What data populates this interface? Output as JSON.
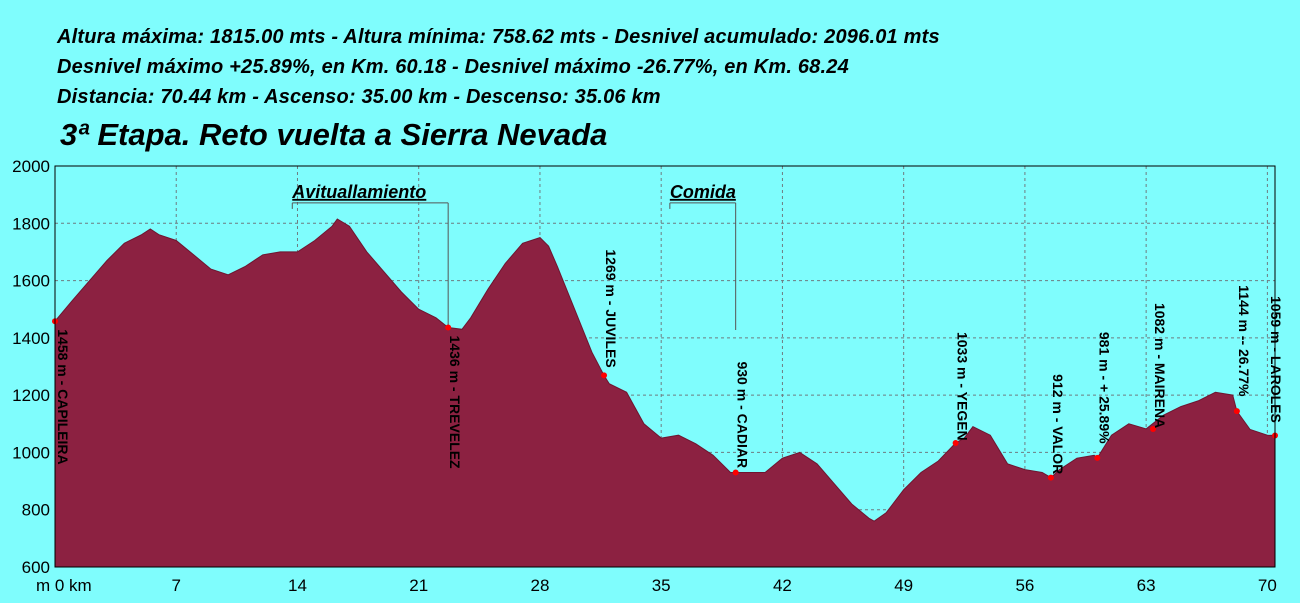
{
  "stats": {
    "line1": "Altura máxima: 1815.00 mts - Altura mínima: 758.62 mts - Desnivel acumulado: 2096.01 mts",
    "line2": "Desnivel máximo +25.89%, en Km. 60.18 - Desnivel máximo -26.77%, en Km. 68.24",
    "line3": "Distancia: 70.44 km - Ascenso: 35.00 km - Descenso: 35.06 km"
  },
  "colors": {
    "background": "#7ffdfd",
    "fill": "#8c2141",
    "grid": "#6f7b80",
    "point": "#ff0000"
  },
  "chart_data": {
    "type": "area",
    "title": "3ª Etapa. Reto vuelta a Sierra Nevada",
    "ylabel": "m",
    "xlabel": "km",
    "xlim": [
      0,
      70.44
    ],
    "ylim": [
      600,
      2000
    ],
    "xticks": [
      0,
      7,
      14,
      21,
      28,
      35,
      42,
      49,
      56,
      63,
      70
    ],
    "xtick_labels": [
      "m 0 km",
      "7",
      "14",
      "21",
      "28",
      "35",
      "42",
      "49",
      "56",
      "63",
      "70"
    ],
    "yticks": [
      600,
      800,
      1000,
      1200,
      1400,
      1600,
      1800,
      2000
    ],
    "grid": true,
    "series": [
      {
        "x": [
          0,
          1,
          2,
          3,
          4,
          5,
          5.5,
          6,
          7,
          8,
          9,
          10,
          11,
          12,
          13,
          14,
          15,
          16,
          16.3,
          17,
          18,
          19,
          20,
          21,
          22,
          22.7,
          23.5,
          24,
          25,
          26,
          27,
          28,
          28.5,
          29,
          30,
          31,
          31.7,
          32,
          33,
          34,
          35,
          36,
          37,
          38,
          39,
          40,
          41,
          42,
          43,
          44,
          45,
          46,
          47,
          47.3,
          48,
          49,
          50,
          51,
          52,
          52.5,
          53,
          54,
          55,
          56,
          57,
          57.5,
          58,
          59,
          60,
          60.18,
          61,
          62,
          63,
          64,
          65,
          66,
          67,
          68,
          68.24,
          69,
          70,
          70.44
        ],
        "y": [
          1458,
          1530,
          1600,
          1670,
          1730,
          1760,
          1780,
          1760,
          1740,
          1690,
          1640,
          1620,
          1650,
          1690,
          1700,
          1700,
          1740,
          1790,
          1815,
          1790,
          1700,
          1630,
          1560,
          1500,
          1470,
          1436,
          1430,
          1470,
          1570,
          1660,
          1730,
          1750,
          1720,
          1650,
          1500,
          1350,
          1269,
          1240,
          1210,
          1100,
          1050,
          1060,
          1030,
          990,
          930,
          930,
          930,
          980,
          1000,
          960,
          890,
          820,
          770,
          760,
          790,
          870,
          930,
          970,
          1033,
          1050,
          1090,
          1060,
          960,
          940,
          930,
          912,
          940,
          980,
          990,
          981,
          1060,
          1100,
          1082,
          1130,
          1160,
          1180,
          1210,
          1200,
          1144,
          1080,
          1060,
          1059
        ]
      }
    ],
    "points": [
      {
        "x": 0,
        "y": 1458,
        "label": "1458 m - CAPILEIRA"
      },
      {
        "x": 22.7,
        "y": 1436,
        "label": "1436 m - TREVELEZ"
      },
      {
        "x": 31.7,
        "y": 1269,
        "label": "1269 m - JUVILES"
      },
      {
        "x": 39.3,
        "y": 930,
        "label": "930 m - CADIAR"
      },
      {
        "x": 52,
        "y": 1033,
        "label": "1033 m - YEGEN"
      },
      {
        "x": 57.5,
        "y": 912,
        "label": "912 m - VALOR"
      },
      {
        "x": 60.18,
        "y": 981,
        "label": "981 m - + 25.89%"
      },
      {
        "x": 63.4,
        "y": 1082,
        "label": "1082 m - MAIRENA"
      },
      {
        "x": 68.24,
        "y": 1144,
        "label": "1144 m -- 26.77%"
      },
      {
        "x": 70.44,
        "y": 1059,
        "label": "1059 m - LAROLES"
      }
    ],
    "flags": [
      {
        "label": "Avituallamiento",
        "x_start": 13.7,
        "x_end": 22.7,
        "y": 1920
      },
      {
        "label": "Comida",
        "x_start": 35.5,
        "x_end": 39.3,
        "y": 1920
      }
    ]
  }
}
